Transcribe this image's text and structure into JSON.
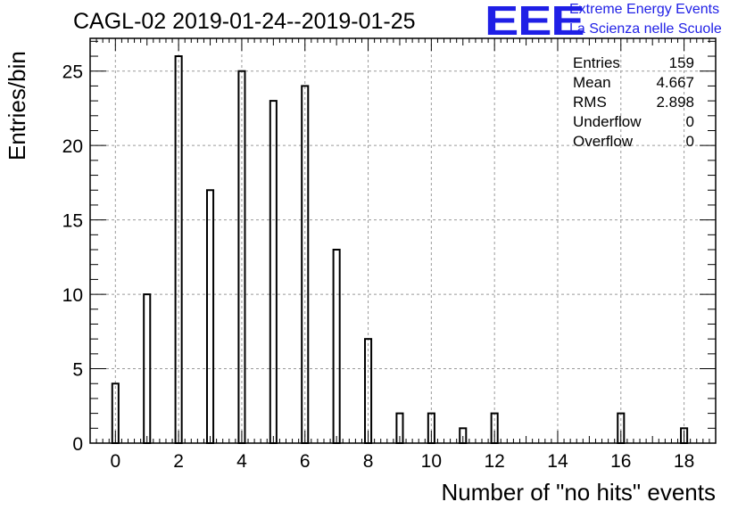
{
  "title": "CAGL-02 2019-01-24--2019-01-25",
  "logo": {
    "mark": "EEE",
    "line1": "Extreme Energy Events",
    "line2": "La Scienza nelle Scuole",
    "color": "#1f1fe6"
  },
  "stats": [
    {
      "label": "Entries",
      "value": "159"
    },
    {
      "label": "Mean",
      "value": "4.667"
    },
    {
      "label": "RMS",
      "value": "2.898"
    },
    {
      "label": "Underflow",
      "value": "0"
    },
    {
      "label": "Overflow",
      "value": "0"
    }
  ],
  "chart_data": {
    "type": "bar",
    "xlabel": "Number of \"no hits\" events",
    "ylabel": "Entries/bin",
    "xlim": [
      -0.8,
      19
    ],
    "ylim": [
      0,
      27.2
    ],
    "x_ticks": [
      0,
      2,
      4,
      6,
      8,
      10,
      12,
      14,
      16,
      18
    ],
    "y_ticks": [
      0,
      5,
      10,
      15,
      20,
      25
    ],
    "grid": true,
    "bin_width": 0.2,
    "x": [
      0,
      1,
      2,
      3,
      4,
      5,
      6,
      7,
      8,
      9,
      10,
      11,
      12,
      16,
      18
    ],
    "values": [
      4,
      10,
      26,
      17,
      25,
      23,
      24,
      13,
      7,
      2,
      2,
      1,
      2,
      2,
      1
    ]
  }
}
